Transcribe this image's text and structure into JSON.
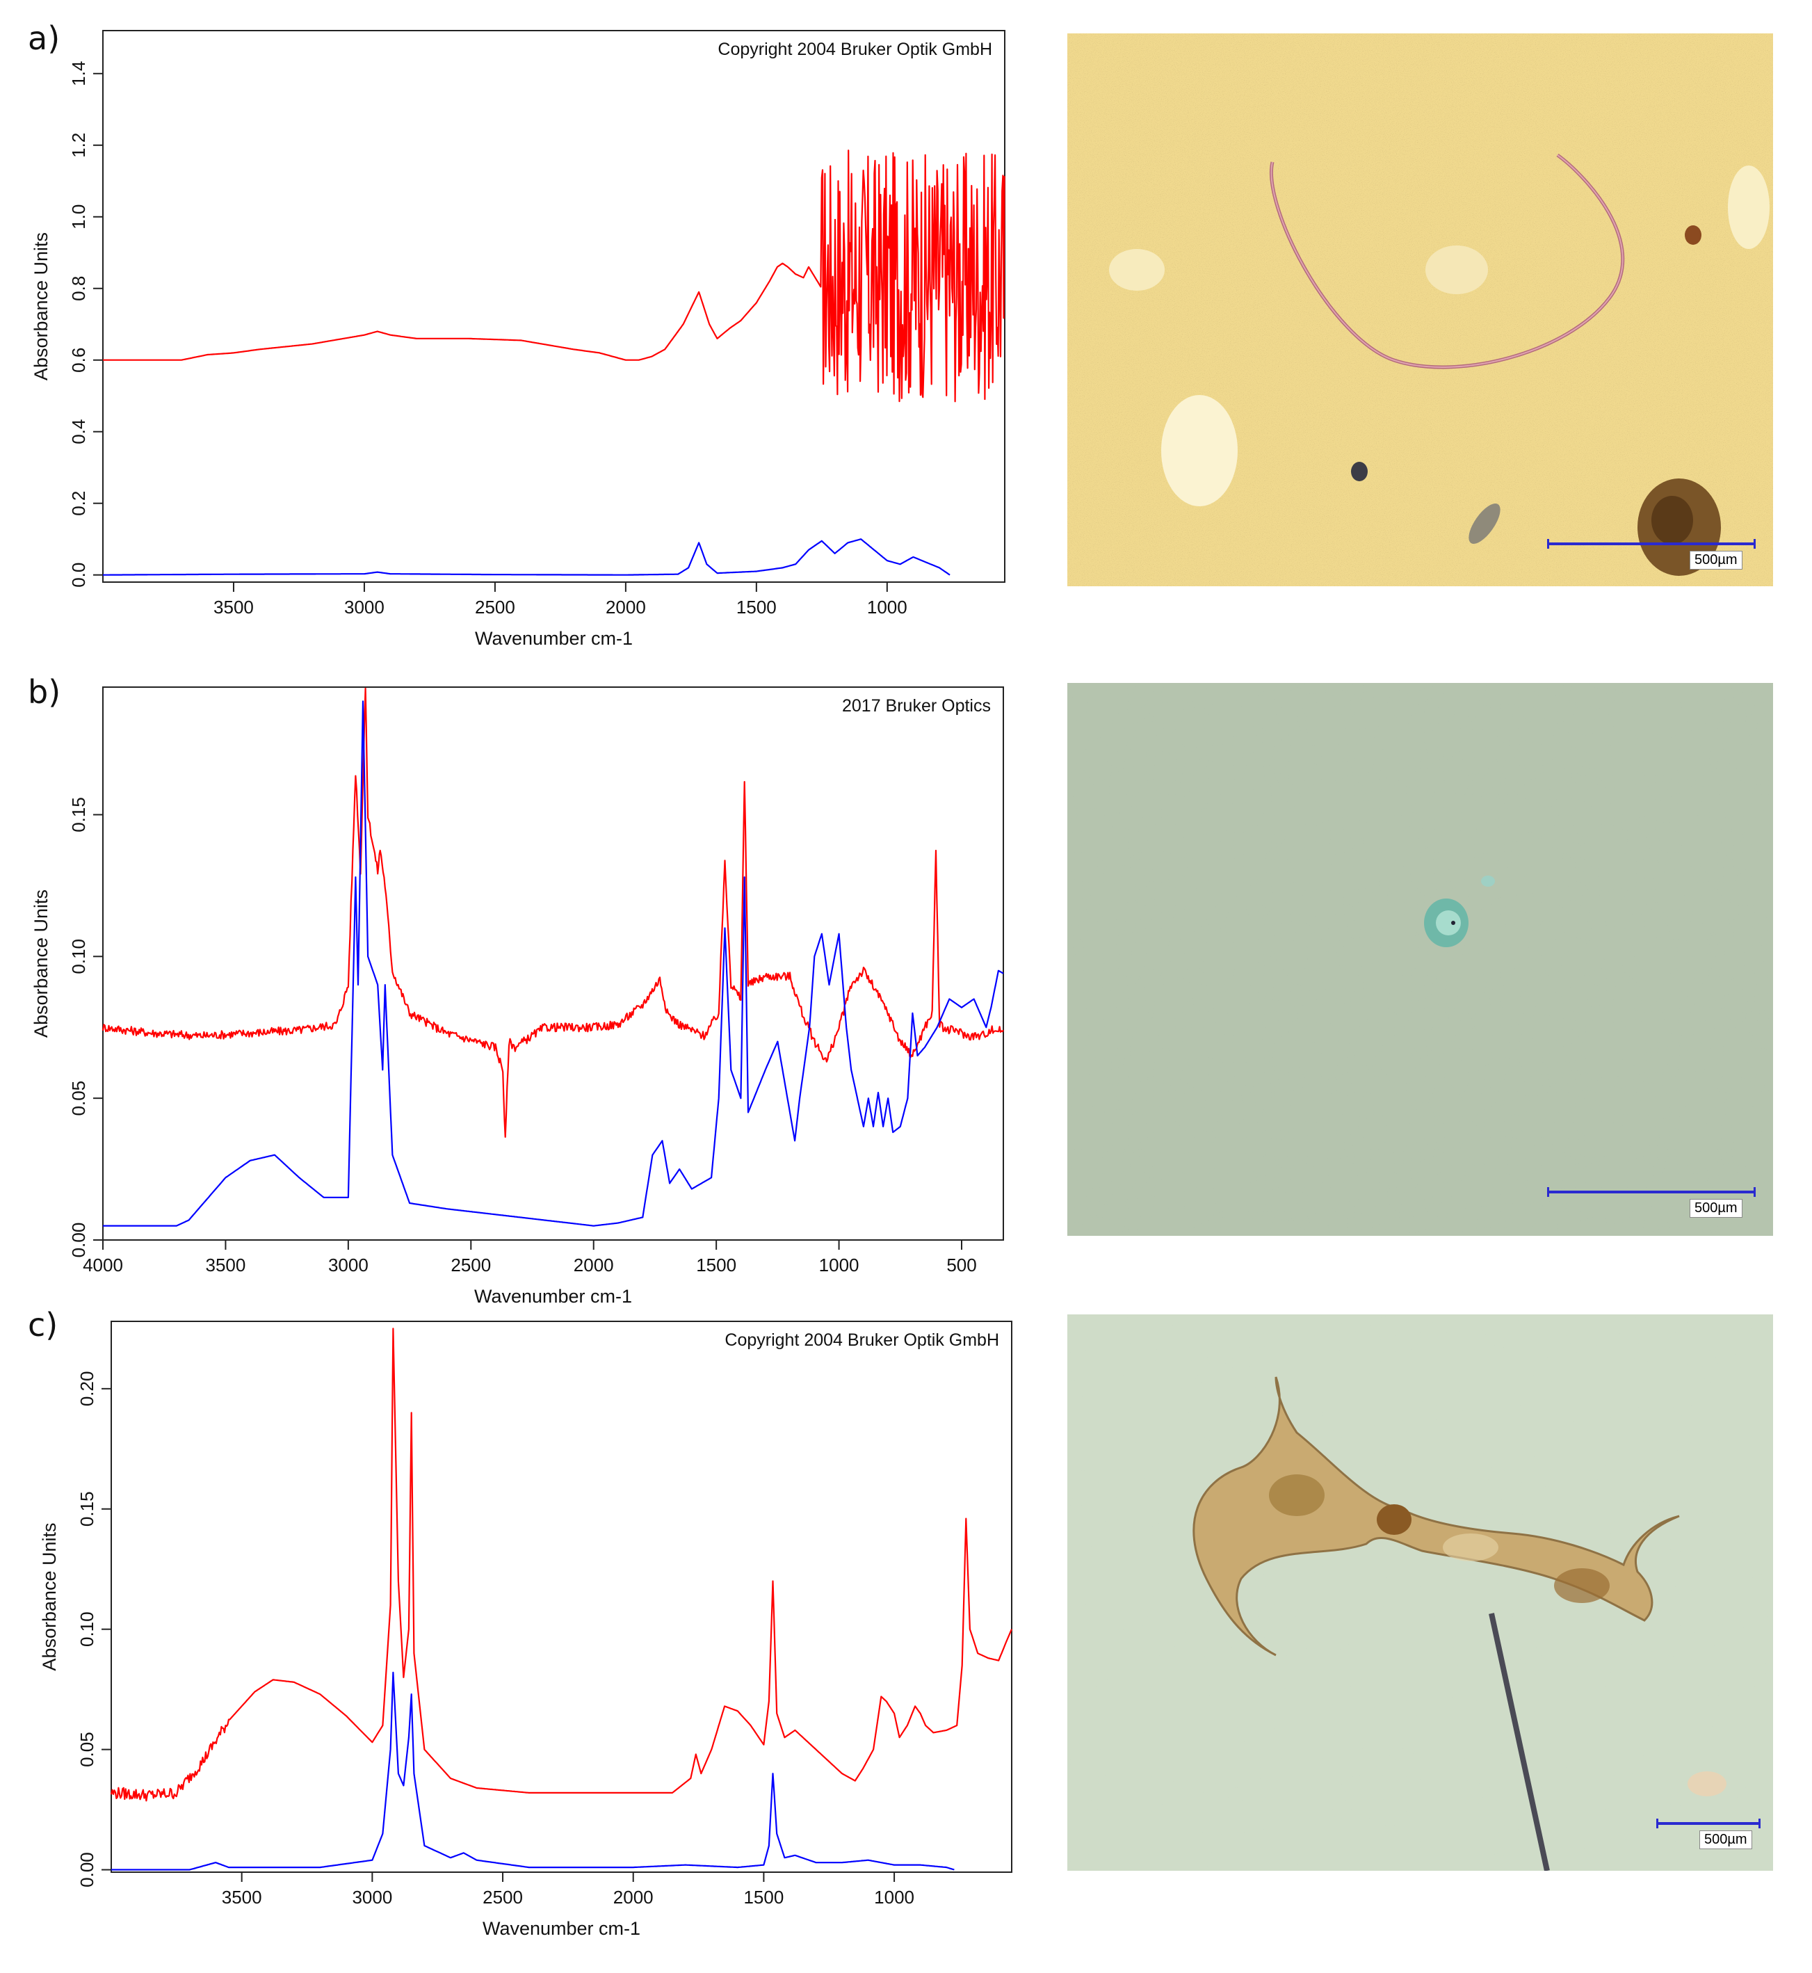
{
  "panels": [
    {
      "letter": "a)",
      "watermark": "Copyright 2004 Bruker Optik GmbH",
      "scale_label": "500µm"
    },
    {
      "letter": "b)",
      "watermark": "2017 Bruker Optics",
      "scale_label": "500µm"
    },
    {
      "letter": "c)",
      "watermark": "Copyright 2004 Bruker Optik GmbH",
      "scale_label": "500µm"
    }
  ],
  "chart_data": [
    {
      "type": "line",
      "xlabel": "Wavenumber cm-1",
      "ylabel": "Absorbance Units",
      "xlim": [
        4000,
        550
      ],
      "ylim": [
        -0.02,
        1.52
      ],
      "xticks": [
        3500,
        3000,
        2500,
        2000,
        1500,
        1000
      ],
      "yticks": [
        0.0,
        0.2,
        0.4,
        0.6,
        0.8,
        1.0,
        1.2,
        1.4
      ],
      "ytick_labels": [
        "0.0",
        "0.2",
        "0.4",
        "0.6",
        "0.8",
        "1.0",
        "1.2",
        "1.4"
      ],
      "series": [
        {
          "color": "#ff0000",
          "noise": {
            "from": 1250,
            "to": 550,
            "amp": 0.32
          },
          "x": [
            4000,
            3800,
            3700,
            3600,
            3500,
            3400,
            3200,
            3000,
            2950,
            2900,
            2800,
            2600,
            2400,
            2200,
            2100,
            2000,
            1950,
            1900,
            1850,
            1780,
            1720,
            1680,
            1650,
            1600,
            1560,
            1500,
            1450,
            1420,
            1400,
            1380,
            1350,
            1320,
            1300,
            1250
          ],
          "y": [
            0.6,
            0.6,
            0.6,
            0.615,
            0.62,
            0.63,
            0.645,
            0.67,
            0.68,
            0.67,
            0.66,
            0.66,
            0.655,
            0.63,
            0.62,
            0.6,
            0.6,
            0.61,
            0.63,
            0.7,
            0.79,
            0.7,
            0.66,
            0.69,
            0.71,
            0.76,
            0.82,
            0.86,
            0.87,
            0.86,
            0.84,
            0.83,
            0.86,
            0.8
          ]
        },
        {
          "color": "#0000ff",
          "x": [
            4000,
            3500,
            3000,
            2950,
            2900,
            2500,
            2000,
            1800,
            1760,
            1720,
            1690,
            1650,
            1500,
            1400,
            1350,
            1300,
            1250,
            1200,
            1150,
            1100,
            1050,
            1000,
            950,
            900,
            850,
            800,
            760
          ],
          "y": [
            0.0,
            0.002,
            0.003,
            0.008,
            0.003,
            0.001,
            0.0,
            0.002,
            0.02,
            0.09,
            0.03,
            0.005,
            0.01,
            0.02,
            0.03,
            0.07,
            0.095,
            0.06,
            0.09,
            0.1,
            0.07,
            0.04,
            0.03,
            0.05,
            0.035,
            0.02,
            0.0
          ]
        }
      ]
    },
    {
      "type": "line",
      "xlabel": "Wavenumber cm-1",
      "ylabel": "Absorbance Units",
      "xlim": [
        4000,
        330
      ],
      "ylim": [
        0.0,
        0.195
      ],
      "xticks": [
        4000,
        3500,
        3000,
        2500,
        2000,
        1500,
        1000,
        500
      ],
      "yticks": [
        0.0,
        0.05,
        0.1,
        0.15
      ],
      "ytick_labels": [
        "0.00",
        "0.05",
        "0.10",
        "0.15"
      ],
      "series": [
        {
          "color": "#ff0000",
          "noise": {
            "from": 4000,
            "to": 330,
            "amp": 0.003
          },
          "x": [
            4000,
            3800,
            3600,
            3400,
            3200,
            3050,
            3000,
            2970,
            2950,
            2930,
            2920,
            2900,
            2880,
            2870,
            2850,
            2820,
            2750,
            2600,
            2400,
            2370,
            2360,
            2345,
            2320,
            2200,
            2000,
            1900,
            1800,
            1730,
            1700,
            1650,
            1550,
            1490,
            1465,
            1440,
            1400,
            1385,
            1370,
            1300,
            1200,
            1150,
            1100,
            1050,
            1000,
            950,
            900,
            850,
            800,
            750,
            700,
            650,
            620,
            605,
            590,
            560,
            520,
            480,
            420,
            380,
            330
          ],
          "y": [
            0.075,
            0.073,
            0.072,
            0.073,
            0.074,
            0.076,
            0.09,
            0.165,
            0.13,
            0.195,
            0.15,
            0.14,
            0.13,
            0.138,
            0.125,
            0.095,
            0.08,
            0.073,
            0.068,
            0.06,
            0.035,
            0.07,
            0.068,
            0.075,
            0.075,
            0.076,
            0.083,
            0.092,
            0.08,
            0.076,
            0.072,
            0.08,
            0.134,
            0.09,
            0.085,
            0.162,
            0.09,
            0.093,
            0.093,
            0.08,
            0.07,
            0.063,
            0.075,
            0.09,
            0.095,
            0.088,
            0.08,
            0.07,
            0.065,
            0.075,
            0.08,
            0.137,
            0.076,
            0.074,
            0.074,
            0.072,
            0.072,
            0.074,
            0.074
          ]
        },
        {
          "color": "#0000ff",
          "x": [
            4000,
            3700,
            3650,
            3500,
            3400,
            3300,
            3200,
            3100,
            3000,
            2970,
            2960,
            2940,
            2920,
            2900,
            2880,
            2860,
            2850,
            2820,
            2750,
            2600,
            2400,
            2200,
            2100,
            2000,
            1900,
            1800,
            1760,
            1720,
            1690,
            1650,
            1600,
            1520,
            1490,
            1465,
            1440,
            1400,
            1385,
            1370,
            1300,
            1250,
            1200,
            1180,
            1160,
            1120,
            1100,
            1070,
            1040,
            1000,
            970,
            950,
            900,
            880,
            860,
            840,
            820,
            800,
            780,
            750,
            720,
            700,
            680,
            650,
            600,
            550,
            500,
            450,
            400,
            380,
            350,
            330
          ],
          "y": [
            0.005,
            0.005,
            0.007,
            0.022,
            0.028,
            0.03,
            0.022,
            0.015,
            0.015,
            0.128,
            0.09,
            0.19,
            0.1,
            0.095,
            0.09,
            0.06,
            0.09,
            0.03,
            0.013,
            0.011,
            0.009,
            0.007,
            0.006,
            0.005,
            0.006,
            0.008,
            0.03,
            0.035,
            0.02,
            0.025,
            0.018,
            0.022,
            0.05,
            0.11,
            0.06,
            0.05,
            0.128,
            0.045,
            0.06,
            0.07,
            0.045,
            0.035,
            0.05,
            0.075,
            0.1,
            0.108,
            0.09,
            0.108,
            0.075,
            0.06,
            0.04,
            0.05,
            0.04,
            0.052,
            0.04,
            0.05,
            0.038,
            0.04,
            0.05,
            0.08,
            0.065,
            0.068,
            0.075,
            0.085,
            0.082,
            0.085,
            0.075,
            0.082,
            0.095,
            0.094
          ]
        }
      ]
    },
    {
      "type": "line",
      "xlabel": "Wavenumber cm-1",
      "ylabel": "Absorbance Units",
      "xlim": [
        4000,
        550
      ],
      "ylim": [
        -0.001,
        0.228
      ],
      "xticks": [
        3500,
        3000,
        2500,
        2000,
        1500,
        1000
      ],
      "yticks": [
        0.0,
        0.05,
        0.1,
        0.15,
        0.2
      ],
      "ytick_labels": [
        "0.00",
        "0.05",
        "0.10",
        "0.15",
        "0.20"
      ],
      "series": [
        {
          "color": "#ff0000",
          "noise": {
            "from": 4000,
            "to": 3550,
            "amp": 0.005
          },
          "x": [
            4000,
            3850,
            3750,
            3650,
            3550,
            3450,
            3380,
            3300,
            3200,
            3100,
            3000,
            2960,
            2930,
            2920,
            2900,
            2880,
            2860,
            2850,
            2840,
            2800,
            2700,
            2600,
            2400,
            2200,
            2000,
            1850,
            1780,
            1760,
            1740,
            1700,
            1650,
            1600,
            1550,
            1500,
            1480,
            1465,
            1450,
            1420,
            1380,
            1300,
            1200,
            1150,
            1120,
            1080,
            1050,
            1030,
            1000,
            980,
            950,
            920,
            900,
            880,
            850,
            800,
            760,
            740,
            725,
            710,
            680,
            640,
            600,
            570,
            550
          ],
          "y": [
            0.032,
            0.031,
            0.032,
            0.045,
            0.062,
            0.074,
            0.079,
            0.078,
            0.073,
            0.064,
            0.053,
            0.06,
            0.11,
            0.225,
            0.12,
            0.08,
            0.1,
            0.19,
            0.09,
            0.05,
            0.038,
            0.034,
            0.032,
            0.032,
            0.032,
            0.032,
            0.038,
            0.048,
            0.04,
            0.05,
            0.068,
            0.066,
            0.06,
            0.052,
            0.07,
            0.12,
            0.065,
            0.055,
            0.058,
            0.05,
            0.04,
            0.037,
            0.042,
            0.05,
            0.072,
            0.07,
            0.065,
            0.055,
            0.06,
            0.068,
            0.065,
            0.06,
            0.057,
            0.058,
            0.06,
            0.085,
            0.146,
            0.1,
            0.09,
            0.088,
            0.087,
            0.095,
            0.1
          ]
        },
        {
          "color": "#0000ff",
          "x": [
            4000,
            3700,
            3600,
            3550,
            3200,
            3000,
            2960,
            2930,
            2920,
            2900,
            2880,
            2860,
            2850,
            2840,
            2800,
            2700,
            2650,
            2600,
            2400,
            2200,
            2000,
            1800,
            1600,
            1500,
            1480,
            1465,
            1450,
            1420,
            1380,
            1300,
            1200,
            1100,
            1050,
            1000,
            900,
            800,
            770
          ],
          "y": [
            0.0,
            0.0,
            0.003,
            0.001,
            0.001,
            0.004,
            0.015,
            0.05,
            0.082,
            0.04,
            0.035,
            0.055,
            0.073,
            0.04,
            0.01,
            0.005,
            0.007,
            0.004,
            0.001,
            0.001,
            0.001,
            0.002,
            0.001,
            0.002,
            0.01,
            0.04,
            0.015,
            0.005,
            0.006,
            0.003,
            0.003,
            0.004,
            0.003,
            0.002,
            0.002,
            0.001,
            0.0
          ]
        }
      ]
    }
  ]
}
